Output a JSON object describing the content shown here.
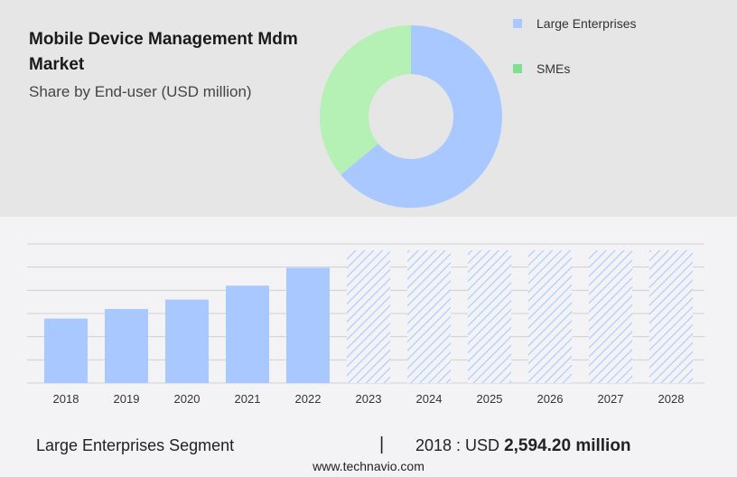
{
  "title": "Mobile Device Management Mdm Market",
  "subtitle": "Share by End-user (USD million)",
  "colors": {
    "large_enterprises": "#a9c8ff",
    "smes_donut": "#b5f0b4",
    "smes_legend": "#7fe08e",
    "bar": "#a9c8ff",
    "forecast_hatch": "#a9c8ff",
    "grid": "#d0d0d0"
  },
  "legend": [
    {
      "label": "Large Enterprises",
      "color": "#a9c8ff"
    },
    {
      "label": "SMEs",
      "color": "#7fe08e"
    }
  ],
  "footer": {
    "segment": "Large Enterprises Segment",
    "separator": "|",
    "year_label": "2018 : USD",
    "value": "2,594.20 million"
  },
  "source": "www.technavio.com",
  "chart_data": [
    {
      "type": "pie",
      "variant": "donut",
      "categories": [
        "Large Enterprises",
        "SMEs"
      ],
      "values": [
        64,
        36
      ],
      "unit": "percent share (estimated)"
    },
    {
      "type": "bar",
      "categories": [
        "2018",
        "2019",
        "2020",
        "2021",
        "2022",
        "2023",
        "2024",
        "2025",
        "2026",
        "2027",
        "2028"
      ],
      "values": [
        2594.2,
        2980,
        3360,
        3920,
        4640,
        null,
        null,
        null,
        null,
        null,
        null
      ],
      "forecast_categories": [
        "2023",
        "2024",
        "2025",
        "2026",
        "2027",
        "2028"
      ],
      "ylim": [
        0,
        5600
      ],
      "grid": true,
      "unit": "USD million"
    }
  ]
}
